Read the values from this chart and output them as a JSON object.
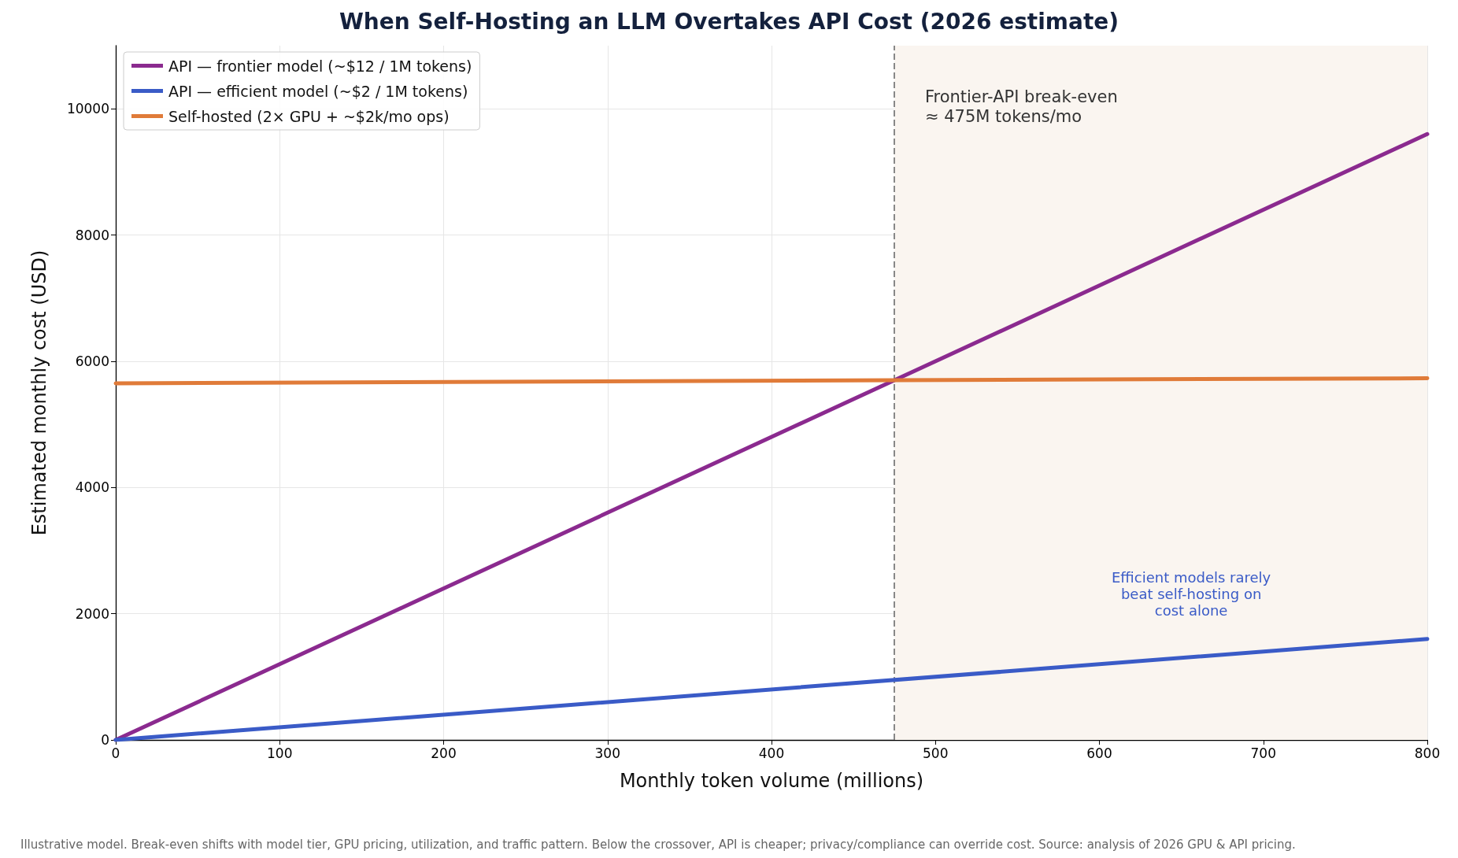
{
  "chart_data": {
    "type": "line",
    "title": "When Self-Hosting an LLM Overtakes API Cost (2026 estimate)",
    "xlabel": "Monthly token volume (millions)",
    "ylabel": "Estimated monthly cost (USD)",
    "series": [
      {
        "name": "API — frontier model (~$12 / 1M tokens)",
        "color": "#8b2a8f",
        "x": [
          0,
          475,
          800
        ],
        "values": [
          0,
          5700,
          9600
        ]
      },
      {
        "name": "API — efficient model (~$2 / 1M tokens)",
        "color": "#3a5bc7",
        "x": [
          0,
          800
        ],
        "values": [
          0,
          1600
        ]
      },
      {
        "name": "Self-hosted (2× GPU + ~$2k/mo ops)",
        "color": "#e07b39",
        "x": [
          0,
          475,
          800
        ],
        "values": [
          5650,
          5700,
          5730
        ]
      }
    ],
    "xlim": [
      0,
      800
    ],
    "xticks": [
      0,
      100,
      200,
      300,
      400,
      500,
      600,
      700,
      800
    ],
    "ylim": [
      0,
      11000
    ],
    "yticks": [
      0,
      2000,
      4000,
      6000,
      8000,
      10000
    ],
    "grid": true,
    "legend": "top left",
    "marker": "none",
    "line_style": "solid",
    "ref_lines": [
      {
        "axis": "x",
        "value": 475,
        "color": "#888888",
        "line_style": "dashed"
      }
    ],
    "bands": [
      {
        "axis": "x",
        "from": 475,
        "to": 800,
        "color": "#faf5f0"
      }
    ],
    "annotations": [
      "Frontier-API break-even\n≈ 475M tokens/mo",
      "Efficient models rarely\nbeat self-hosting on\ncost alone",
      "Illustrative model. Break-even shifts with model tier, GPU pricing, utilization, and traffic pattern. Below the crossover, API is cheaper; privacy/compliance can override cost. Source: analysis of 2026 GPU & API pricing."
    ]
  }
}
